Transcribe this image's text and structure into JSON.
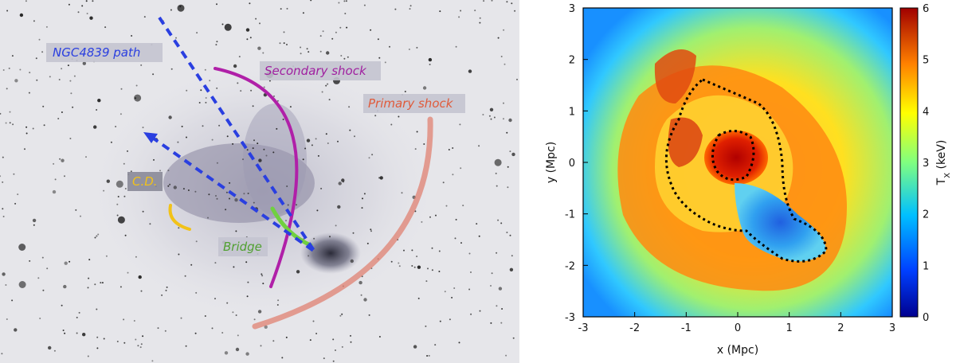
{
  "left_panel": {
    "labels": {
      "ngc4839_path": "NGC4839 path",
      "secondary_shock": "Secondary shock",
      "primary_shock": "Primary shock",
      "contact_discontinuity": "C.D.",
      "bridge": "Bridge"
    },
    "colors": {
      "ngc4839_path": "#2a3fe0",
      "secondary_shock": "#a020a0",
      "primary_shock": "#e05a3a",
      "contact_discontinuity": "#f0c020",
      "bridge": "#50a030"
    }
  },
  "right_panel": {
    "xlabel": "x (Mpc)",
    "ylabel": "y (Mpc)",
    "colorbar_label": "T",
    "colorbar_label_sub": "X",
    "colorbar_label_unit": " (keV)",
    "x_ticks": [
      "-3",
      "-2",
      "-1",
      "0",
      "1",
      "2",
      "3"
    ],
    "y_ticks": [
      "3",
      "2",
      "1",
      "0",
      "-1",
      "-2",
      "-3"
    ],
    "cbar_ticks": [
      "6",
      "5",
      "4",
      "3",
      "2",
      "1",
      "0"
    ]
  }
}
